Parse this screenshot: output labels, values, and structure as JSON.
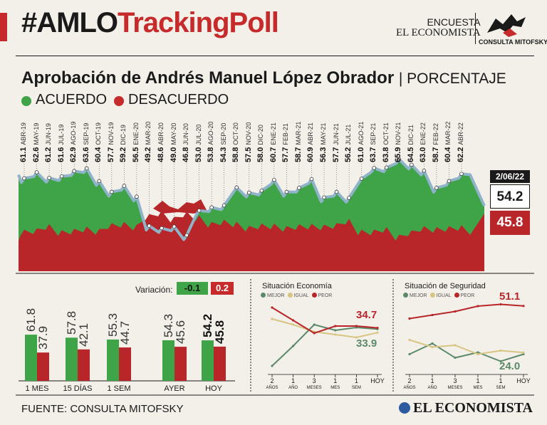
{
  "header": {
    "title_black": "#AMLO",
    "title_red": "TrackingPoll",
    "brand_line1": "ENCUESTA",
    "brand_line2": "EL ECONOMISTA",
    "logo_label": "CONSULTA MITOFSKY"
  },
  "subtitle": {
    "text": "Aprobación de Andrés Manuel López Obrador",
    "unit": "| PORCENTAJE"
  },
  "legend": {
    "acuerdo": "ACUERDO",
    "desacuerdo": "DESACUERDO"
  },
  "colors": {
    "green": "#3fa347",
    "red": "#b8262a",
    "line": "#8fb3c9",
    "bg": "#f3f0e9"
  },
  "final": {
    "date": "2/06/22",
    "acuerdo": "54.2",
    "desacuerdo": "45.8"
  },
  "variation": {
    "label": "Variación:",
    "acuerdo": "-0.1",
    "desacuerdo": "0.2"
  },
  "source": "FUENTE: CONSULTA MITOFSKY",
  "footer_logo": "EL ECONOMISTA",
  "chart_data": [
    {
      "type": "area",
      "title": "Aprobación de Andrés Manuel López Obrador",
      "ylabel": "PORCENTAJE",
      "labeled_points": [
        {
          "v": "61.1",
          "d": "ABR-19"
        },
        {
          "v": "62.6",
          "d": "MAY-19"
        },
        {
          "v": "61.2",
          "d": "JUN-19"
        },
        {
          "v": "61.6",
          "d": "JUL-19"
        },
        {
          "v": "62.9",
          "d": "AGO-19"
        },
        {
          "v": "63.6",
          "d": "SEP-19"
        },
        {
          "v": "60.4",
          "d": "OCT-19"
        },
        {
          "v": "57.7",
          "d": "NOV-19"
        },
        {
          "v": "59.2",
          "d": "DIC-19"
        },
        {
          "v": "56.5",
          "d": "ENE-20"
        },
        {
          "v": "49.2",
          "d": "MAR-20"
        },
        {
          "v": "48.6",
          "d": "ABR-20"
        },
        {
          "v": "49.0",
          "d": "MAY-20"
        },
        {
          "v": "46.8",
          "d": "JUN-20"
        },
        {
          "v": "53.0",
          "d": "JUL-20"
        },
        {
          "v": "53.8",
          "d": "AGO-20"
        },
        {
          "v": "54.3",
          "d": "SEP-20"
        },
        {
          "v": "58.8",
          "d": "OCT-20"
        },
        {
          "v": "57.5",
          "d": "NOV-20"
        },
        {
          "v": "58.0",
          "d": "DIC-20"
        },
        {
          "v": "60.7",
          "d": "ENE-21"
        },
        {
          "v": "57.7",
          "d": "FEB-21"
        },
        {
          "v": "58.7",
          "d": "MAR-21"
        },
        {
          "v": "60.9",
          "d": "ABR-21"
        },
        {
          "v": "56.3",
          "d": "MAY-21"
        },
        {
          "v": "57.7",
          "d": "JUN-21"
        },
        {
          "v": "56.2",
          "d": "JUL-21"
        },
        {
          "v": "61.0",
          "d": "AGO-21"
        },
        {
          "v": "63.7",
          "d": "SEP-21"
        },
        {
          "v": "63.8",
          "d": "OCT-21"
        },
        {
          "v": "65.9",
          "d": "NOV-21"
        },
        {
          "v": "64.5",
          "d": "DIC-21"
        },
        {
          "v": "63.0",
          "d": "ENE-22"
        },
        {
          "v": "58.7",
          "d": "FEB-22"
        },
        {
          "v": "60.4",
          "d": "MAR-22"
        },
        {
          "v": "62.2",
          "d": "ABR-22"
        }
      ],
      "final_date": "2/06/22",
      "final_acuerdo": 54.2,
      "final_desacuerdo": 45.8
    },
    {
      "type": "bar",
      "categories": [
        "1 MES",
        "15 DÍAS",
        "1 SEM",
        "AYER",
        "HOY"
      ],
      "series": [
        {
          "name": "ACUERDO",
          "values": [
            61.8,
            57.8,
            55.3,
            54.3,
            54.2
          ]
        },
        {
          "name": "DESACUERDO",
          "values": [
            37.9,
            42.1,
            44.7,
            45.6,
            45.8
          ]
        }
      ],
      "value_labels": {
        "acuerdo": [
          "61.8",
          "57.8",
          "55.3",
          "54.3",
          "54.2"
        ],
        "desacuerdo": [
          "37.9",
          "42.1",
          "44.7",
          "45.6",
          "45.8"
        ]
      }
    },
    {
      "type": "line",
      "title": "Situación Economía",
      "legend": [
        "MEJOR",
        "IGUAL",
        "PEOR"
      ],
      "x": [
        "2 AÑOS",
        "1 AÑO",
        "3 MESES",
        "1 MES",
        "1 SEM",
        "HOY"
      ],
      "x_main": [
        "2",
        "1",
        "3",
        "1",
        "1",
        "HOY"
      ],
      "x_sub": [
        "AÑOS",
        "AÑO",
        "MESES",
        "MES",
        "SEM",
        ""
      ],
      "series": [
        {
          "name": "MEJOR",
          "values": [
            8,
            22,
            37,
            33,
            35,
            33.9
          ]
        },
        {
          "name": "IGUAL",
          "values": [
            41,
            37,
            32,
            30,
            28,
            31.4
          ]
        },
        {
          "name": "PEOR",
          "values": [
            49,
            40,
            31,
            36,
            36,
            34.7
          ]
        }
      ],
      "labels": {
        "peor": "34.7",
        "mejor": "33.9"
      }
    },
    {
      "type": "line",
      "title": "Situación de Seguridad",
      "legend": [
        "MEJOR",
        "IGUAL",
        "PEOR"
      ],
      "x": [
        "2 AÑOS",
        "1 AÑO",
        "3 MESES",
        "1 MES",
        "1 SEM",
        "HOY"
      ],
      "x_main": [
        "2",
        "1",
        "3",
        "1",
        "1",
        "HOY"
      ],
      "x_sub": [
        "AÑOS",
        "AÑO",
        "MESES",
        "MES",
        "SEM",
        ""
      ],
      "series": [
        {
          "name": "MEJOR",
          "values": [
            24,
            30,
            22,
            25,
            20,
            24.0
          ]
        },
        {
          "name": "IGUAL",
          "values": [
            32,
            28,
            29,
            24,
            26,
            24.9
          ]
        },
        {
          "name": "PEOR",
          "values": [
            44,
            46,
            48,
            51,
            52,
            51.1
          ]
        }
      ],
      "labels": {
        "peor": "51.1",
        "mejor": "24.0"
      }
    }
  ]
}
